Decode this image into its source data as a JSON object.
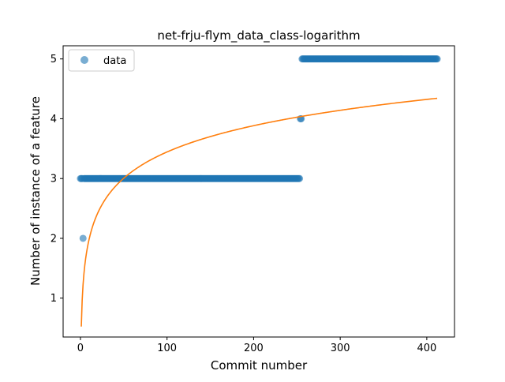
{
  "chart_data": {
    "type": "scatter",
    "title": "net-frju-flym_data_class-logarithm",
    "xlabel": "Commit number",
    "ylabel": "Number of instance of a feature",
    "xlim": [
      -20,
      432
    ],
    "ylim": [
      0.35,
      5.22
    ],
    "xticks": [
      0,
      100,
      200,
      300,
      400
    ],
    "yticks": [
      1,
      2,
      3,
      4,
      5
    ],
    "xtick_labels": [
      "0",
      "100",
      "200",
      "300",
      "400"
    ],
    "ytick_labels": [
      "1",
      "2",
      "3",
      "4",
      "5"
    ],
    "legend": {
      "position": "upper left",
      "entries": [
        {
          "label": "data",
          "marker": "circle",
          "color": "#1f77b4"
        }
      ]
    },
    "series": [
      {
        "name": "data",
        "kind": "scatter",
        "color": "#1f77b4",
        "alpha": 0.6,
        "segments": [
          {
            "x_start": 0,
            "x_end": 2,
            "step": 1,
            "y": 3
          },
          {
            "x_start": 3,
            "x_end": 3,
            "step": 1,
            "y": 2
          },
          {
            "x_start": 4,
            "x_end": 253,
            "step": 1,
            "y": 3
          },
          {
            "x_start": 254,
            "x_end": 255,
            "step": 1,
            "y": 4
          },
          {
            "x_start": 256,
            "x_end": 412,
            "step": 1,
            "y": 5
          }
        ]
      },
      {
        "kind": "line",
        "color": "#ff7f0e",
        "function": "logarithmic",
        "x_range": [
          1,
          412
        ],
        "approx_points": [
          {
            "x": 1,
            "y": 0.58
          },
          {
            "x": 5,
            "y": 1.54
          },
          {
            "x": 20,
            "y": 2.38
          },
          {
            "x": 50,
            "y": 2.94
          },
          {
            "x": 100,
            "y": 3.4
          },
          {
            "x": 200,
            "y": 3.9
          },
          {
            "x": 300,
            "y": 4.18
          },
          {
            "x": 412,
            "y": 4.39
          }
        ]
      }
    ],
    "grid": false
  }
}
